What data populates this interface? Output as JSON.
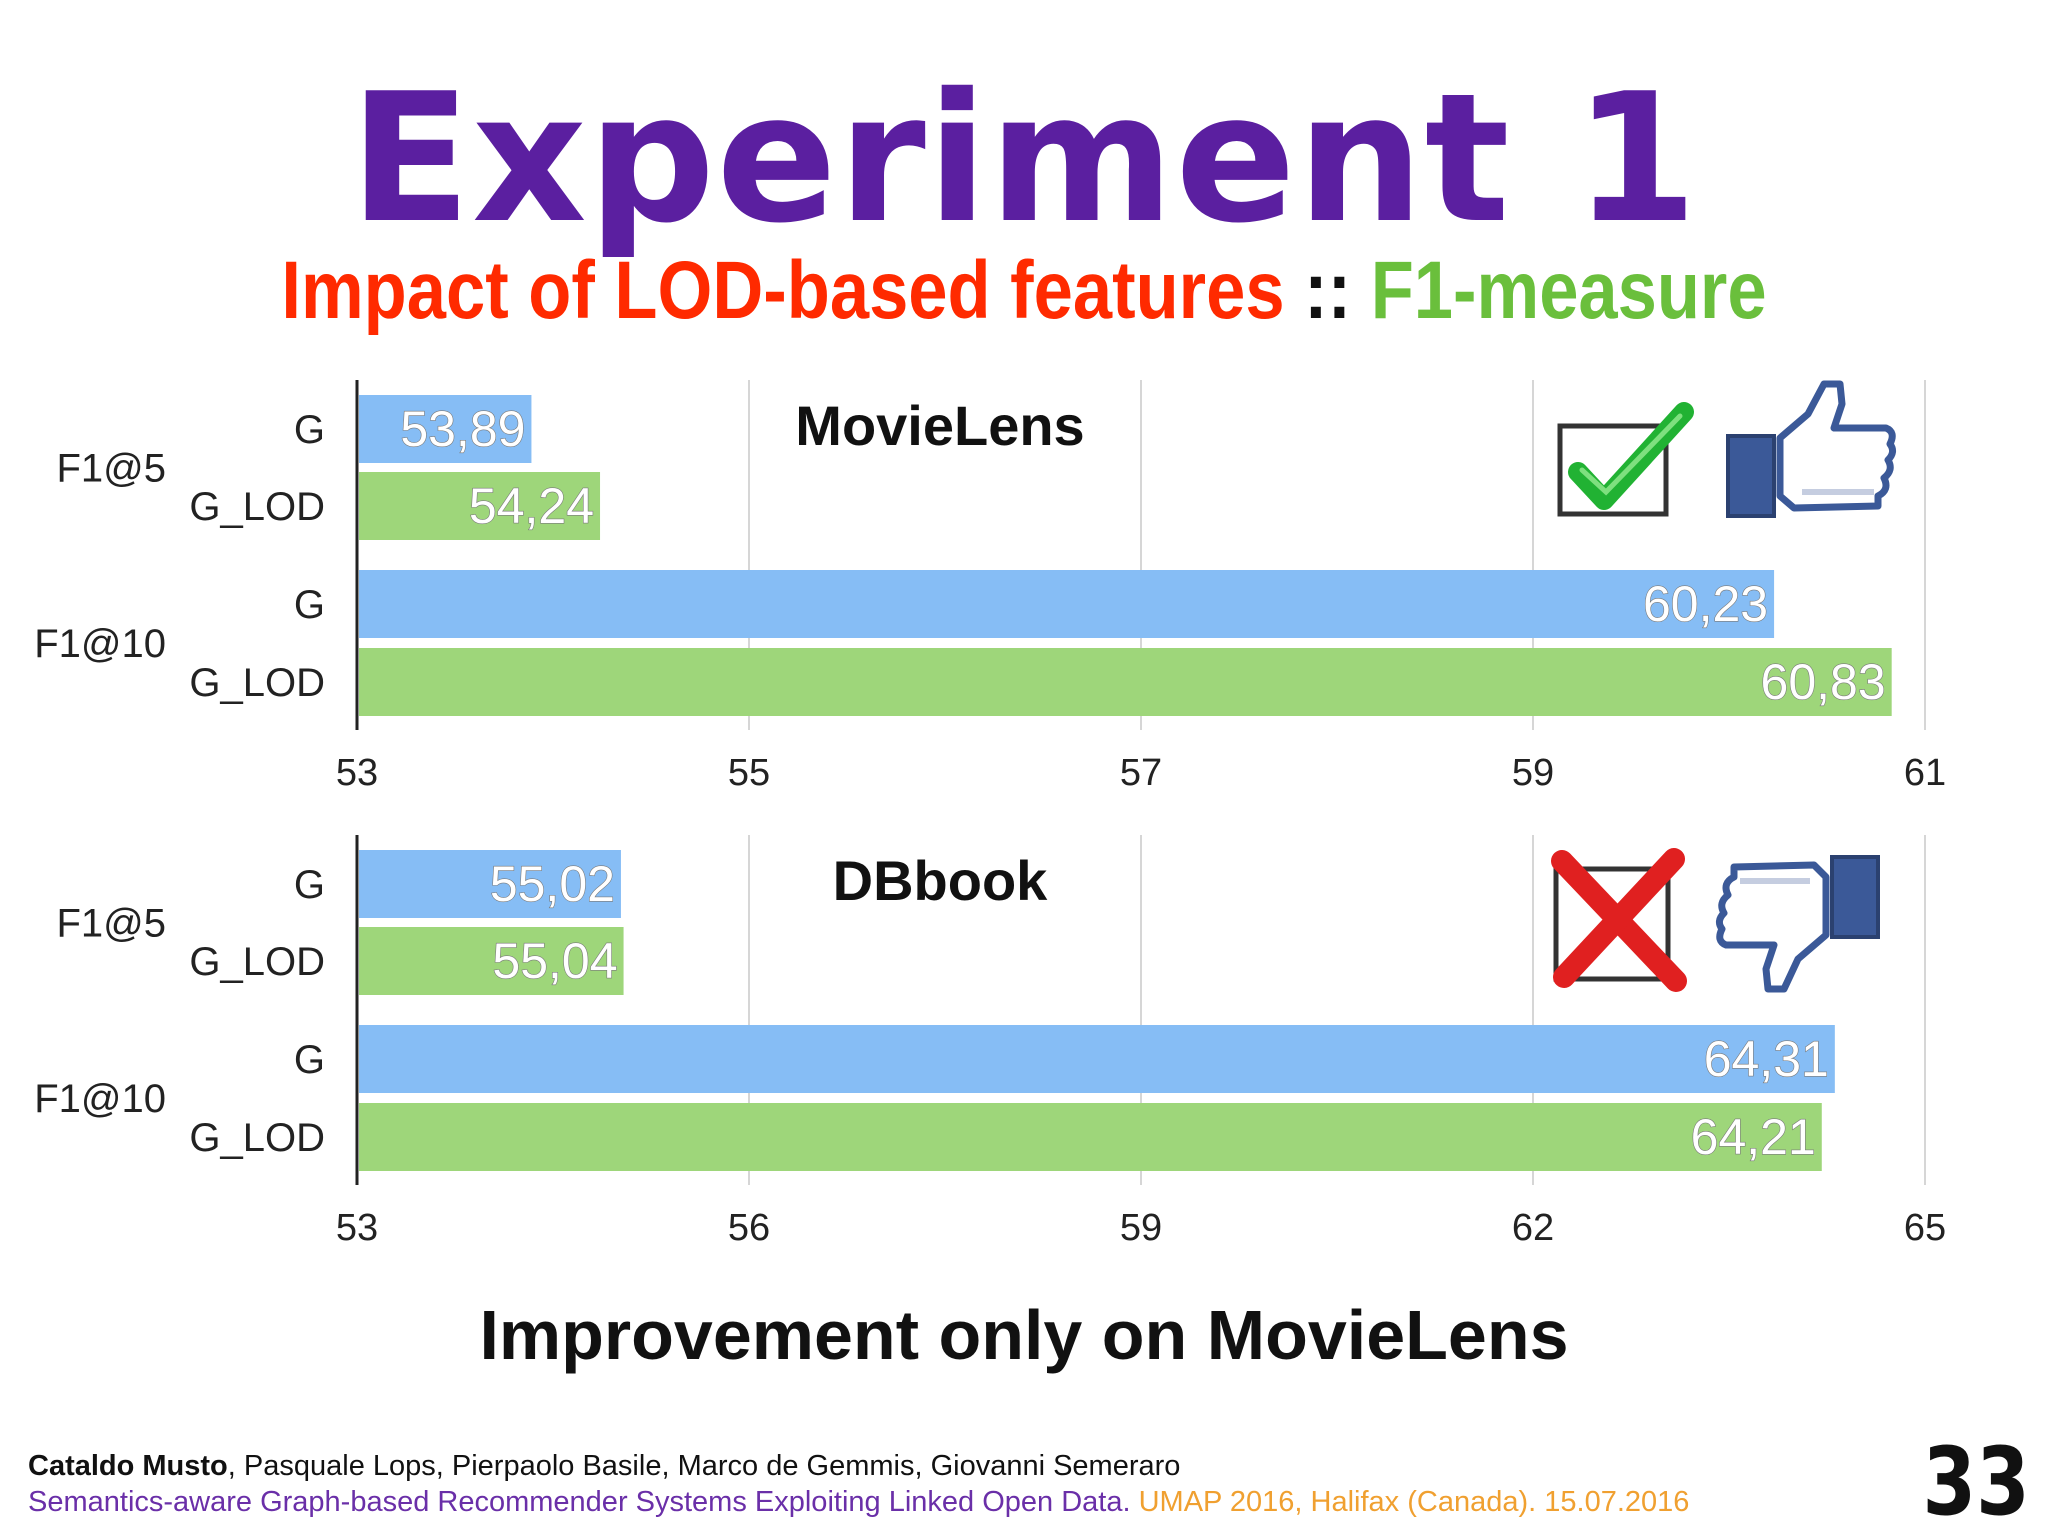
{
  "title": "Experiment 1",
  "subtitle": {
    "part1": "Impact of LOD-based features",
    "separator": " :: ",
    "part2": "F1-measure"
  },
  "colors": {
    "title": "#5b1fa0",
    "subtitle_part1": "#ff2a00",
    "separator": "#111111",
    "subtitle_part2": "#6abf3c",
    "bar_G": "#86bdf5",
    "bar_G_LOD": "#9ed67a",
    "footer_authors": "#111111",
    "footer_paper": "#6a2fa8",
    "footer_venue": "#f0a030"
  },
  "chart_data": [
    {
      "type": "bar",
      "orientation": "horizontal",
      "title": "MovieLens",
      "groups": [
        "F1@5",
        "F1@10"
      ],
      "bar_labels": [
        "G",
        "G_LOD"
      ],
      "series": [
        {
          "name": "G",
          "values": [
            53.89,
            60.23
          ],
          "labels": [
            "53,89",
            "60,23"
          ]
        },
        {
          "name": "G_LOD",
          "values": [
            54.24,
            60.83
          ],
          "labels": [
            "54,24",
            "60,83"
          ]
        }
      ],
      "xlim": [
        53,
        61
      ],
      "xticks": [
        "53",
        "55",
        "57",
        "59",
        "61"
      ],
      "grid": true,
      "icons": [
        "checkmark-icon",
        "thumbs-up-icon"
      ]
    },
    {
      "type": "bar",
      "orientation": "horizontal",
      "title": "DBbook",
      "groups": [
        "F1@5",
        "F1@10"
      ],
      "bar_labels": [
        "G",
        "G_LOD"
      ],
      "series": [
        {
          "name": "G",
          "values": [
            55.02,
            64.31
          ],
          "labels": [
            "55,02",
            "64,31"
          ]
        },
        {
          "name": "G_LOD",
          "values": [
            55.04,
            64.21
          ],
          "labels": [
            "55,04",
            "64,21"
          ]
        }
      ],
      "xlim": [
        53,
        65
      ],
      "xticks": [
        "53",
        "56",
        "59",
        "62",
        "65"
      ],
      "grid": true,
      "icons": [
        "cross-icon",
        "thumbs-down-icon"
      ]
    }
  ],
  "conclusion": "Improvement only on MovieLens",
  "footer": {
    "lead_author": "Cataldo Musto",
    "other_authors": ", Pasquale Lops, Pierpaolo Basile, Marco de Gemmis, Giovanni Semeraro",
    "paper": "Semantics-aware Graph-based Recommender Systems Exploiting Linked Open Data.",
    "venue": " UMAP 2016, Halifax (Canada). 15.07.2016"
  },
  "page_number": "33"
}
